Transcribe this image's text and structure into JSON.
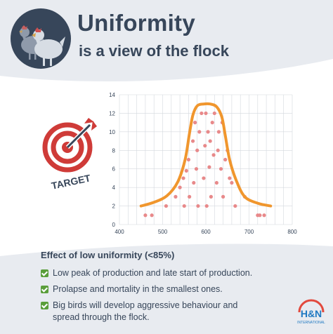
{
  "header": {
    "title": "Uniformity",
    "subtitle": "is a view of the flock"
  },
  "target_label": "TARGET",
  "chart_data": {
    "type": "scatter",
    "title": "",
    "xlabel": "",
    "ylabel": "",
    "xlim": [
      400,
      800
    ],
    "ylim": [
      0,
      14
    ],
    "x_ticks": [
      400,
      500,
      600,
      700,
      800
    ],
    "y_ticks": [
      0,
      2,
      4,
      6,
      8,
      10,
      12,
      14
    ],
    "grid": true,
    "colors": {
      "curve": "#f0962d",
      "points": "#e8898a",
      "grid": "#d4d8de"
    },
    "series": [
      {
        "type": "line",
        "x": [
          450,
          480,
          510,
          535,
          552,
          562,
          570,
          580,
          595,
          610,
          625,
          637,
          645,
          655,
          670,
          690,
          720,
          750
        ],
        "values": [
          2,
          2.4,
          3.1,
          4.6,
          7.0,
          9.8,
          11.8,
          12.8,
          13.0,
          13.0,
          12.7,
          11.6,
          9.6,
          7.0,
          4.8,
          3.0,
          2.3,
          2.0
        ]
      },
      {
        "type": "scatter",
        "x": [
          460,
          475,
          508,
          530,
          540,
          548,
          550,
          555,
          560,
          562,
          570,
          572,
          575,
          578,
          580,
          582,
          585,
          590,
          595,
          598,
          600,
          602,
          605,
          608,
          610,
          612,
          615,
          618,
          620,
          625,
          628,
          630,
          635,
          638,
          640,
          645,
          650,
          655,
          660,
          668,
          690,
          720,
          725,
          735
        ],
        "values": [
          1,
          1,
          2,
          3,
          4,
          5,
          2,
          5.8,
          7,
          3,
          9,
          4.5,
          11,
          6,
          8,
          2,
          10,
          12,
          5,
          8.5,
          12,
          2,
          10,
          6.2,
          9,
          3,
          11,
          7.5,
          12,
          4.5,
          8,
          10,
          6,
          11,
          3,
          7,
          8,
          5,
          4.5,
          2,
          3,
          1,
          1,
          1
        ]
      }
    ]
  },
  "effects": {
    "heading": "Effect of low uniformity (<85%)",
    "items": [
      "Low peak of production and late start of production.",
      "Prolapse and mortality in the smallest ones.",
      "Big birds will develop aggressive behaviour and spread through the flock."
    ]
  },
  "logo": {
    "main": "H&N",
    "sub": "INTERNATIONAL"
  }
}
